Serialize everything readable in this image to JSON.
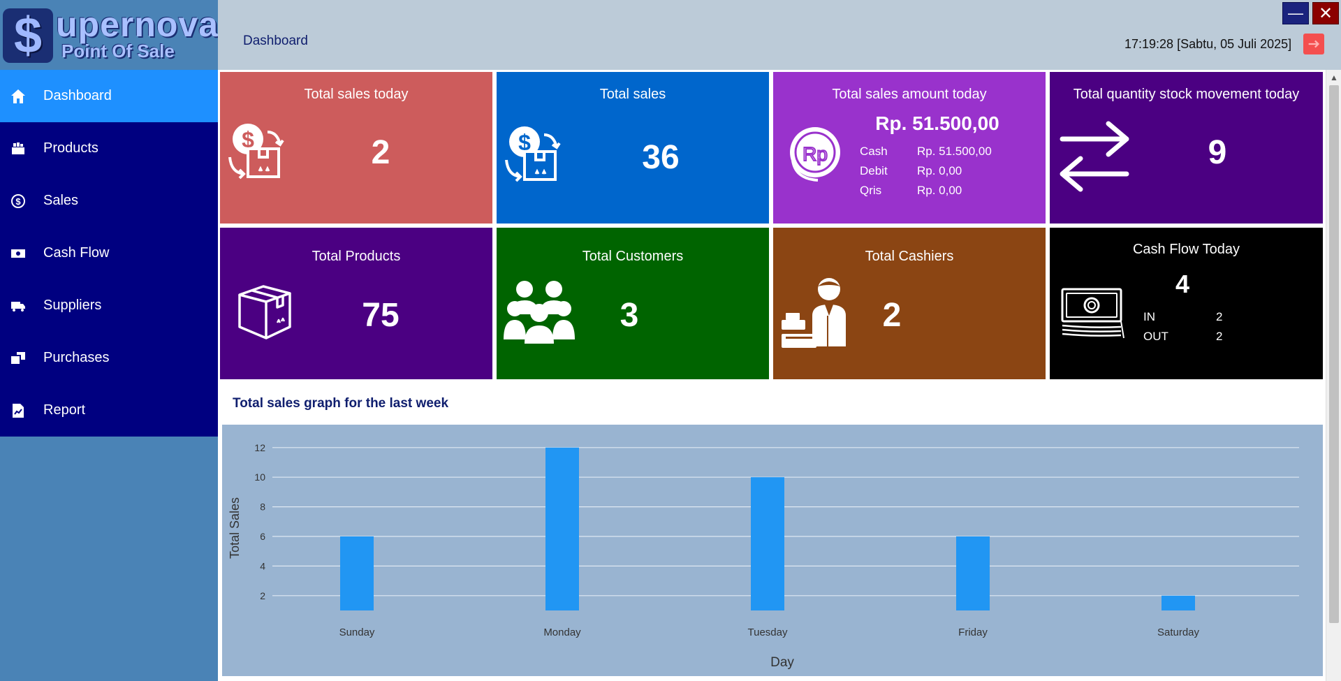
{
  "app": {
    "logo_symbol": "$",
    "logo_title": "upernova",
    "logo_subtitle": "Point Of Sale"
  },
  "header": {
    "page_title": "Dashboard",
    "clock": "17:19:28 [Sabtu, 05 Juli 2025]",
    "minimize_label": "—",
    "close_label": "✕"
  },
  "sidebar": {
    "items": [
      {
        "label": "Dashboard",
        "icon": "home-icon",
        "active": true
      },
      {
        "label": "Products",
        "icon": "products-icon"
      },
      {
        "label": "Sales",
        "icon": "sales-icon"
      },
      {
        "label": "Cash Flow",
        "icon": "cash-flow-icon"
      },
      {
        "label": "Suppliers",
        "icon": "suppliers-icon"
      },
      {
        "label": "Purchases",
        "icon": "purchases-icon"
      },
      {
        "label": "Report",
        "icon": "report-icon"
      }
    ]
  },
  "cards": {
    "total_sales_today": {
      "title": "Total sales today",
      "value": "2",
      "color": "#cd5c5c"
    },
    "total_sales": {
      "title": "Total sales",
      "value": "36",
      "color": "#0066cc"
    },
    "total_sales_amount_today": {
      "title": "Total sales amount today",
      "value": "Rp. 51.500,00",
      "icon_text": "Rp",
      "rows": [
        {
          "label": "Cash",
          "value": "Rp. 51.500,00"
        },
        {
          "label": "Debit",
          "value": "Rp. 0,00"
        },
        {
          "label": "Qris",
          "value": "Rp. 0,00"
        }
      ],
      "color": "#9932cc"
    },
    "total_quantity_stock": {
      "title": "Total quantity stock movement today",
      "value": "9",
      "color": "#4b0082"
    },
    "total_products": {
      "title": "Total Products",
      "value": "75",
      "color": "#4b0082"
    },
    "total_customers": {
      "title": "Total Customers",
      "value": "3",
      "color": "#006400"
    },
    "total_cashiers": {
      "title": "Total Cashiers",
      "value": "2",
      "color": "#8b4513"
    },
    "cash_flow_today": {
      "title": "Cash Flow Today",
      "value": "4",
      "rows": [
        {
          "label": "IN",
          "value": "2"
        },
        {
          "label": "OUT",
          "value": "2"
        }
      ],
      "color": "#000000"
    }
  },
  "graph": {
    "title": "Total sales graph for the last week"
  },
  "chart_data": {
    "type": "bar",
    "categories": [
      "Sunday",
      "Monday",
      "Tuesday",
      "Friday",
      "Saturday"
    ],
    "values": [
      6,
      12,
      10,
      6,
      2
    ],
    "xlabel": "Day",
    "ylabel": "Total Sales",
    "yticks": [
      2,
      4,
      6,
      8,
      10,
      12
    ],
    "ylim": [
      1,
      13
    ],
    "bar_color": "#2196f3",
    "grid": true
  }
}
